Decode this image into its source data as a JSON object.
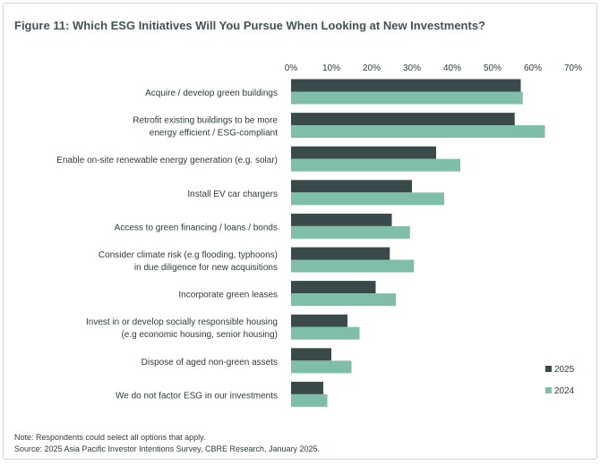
{
  "figure_title": "Figure 11:  Which ESG Initiatives Will You Pursue When Looking at New Investments?",
  "note": "Note: Respondents could select all options that apply.",
  "source": "Source: 2025 Asia Pacific Investor Intentions Survey, CBRE Research, January 2025.",
  "colors": {
    "series_2025": "#3a4a4b",
    "series_2024": "#7fbfaa",
    "title": "#435254",
    "text": "#2f3b3d"
  },
  "chart_data": {
    "type": "bar",
    "orientation": "horizontal",
    "categories": [
      [
        "Acquire / develop green buildings"
      ],
      [
        "Retrofit existing buildings to be more",
        "energy efficient / ESG-compliant"
      ],
      [
        "Enable on-site renewable energy generation  (e.g. solar)"
      ],
      [
        "Install EV car chargers"
      ],
      [
        "Access to green financing / loans / bonds"
      ],
      [
        "Consider climate risk (e.g flooding, typhoons)",
        "in due diligence for new acquisitions"
      ],
      [
        "Incorporate green leases"
      ],
      [
        "Invest in or develop socially responsible housing",
        "(e.g economic housing, senior housing)"
      ],
      [
        "Dispose of aged non-green assets"
      ],
      [
        "We do not factor ESG in our investments"
      ]
    ],
    "series": [
      {
        "name": "2025",
        "color": "#3a4a4b",
        "values": [
          57,
          55.5,
          36,
          30,
          25,
          24.5,
          21,
          14,
          10,
          8
        ]
      },
      {
        "name": "2024",
        "color": "#7fbfaa",
        "values": [
          57.5,
          63,
          42,
          38,
          29.5,
          30.5,
          26,
          17,
          15,
          9
        ]
      }
    ],
    "xlim": [
      0,
      70
    ],
    "xticks": [
      "0%",
      "10%",
      "20%",
      "30%",
      "40%",
      "50%",
      "60%",
      "70%"
    ],
    "xaxis_position": "top",
    "grid": false,
    "legend_placement": "bottom-right",
    "legend": [
      {
        "label": "2025",
        "color": "#3a4a4b"
      },
      {
        "label": "2024",
        "color": "#7fbfaa"
      }
    ]
  }
}
